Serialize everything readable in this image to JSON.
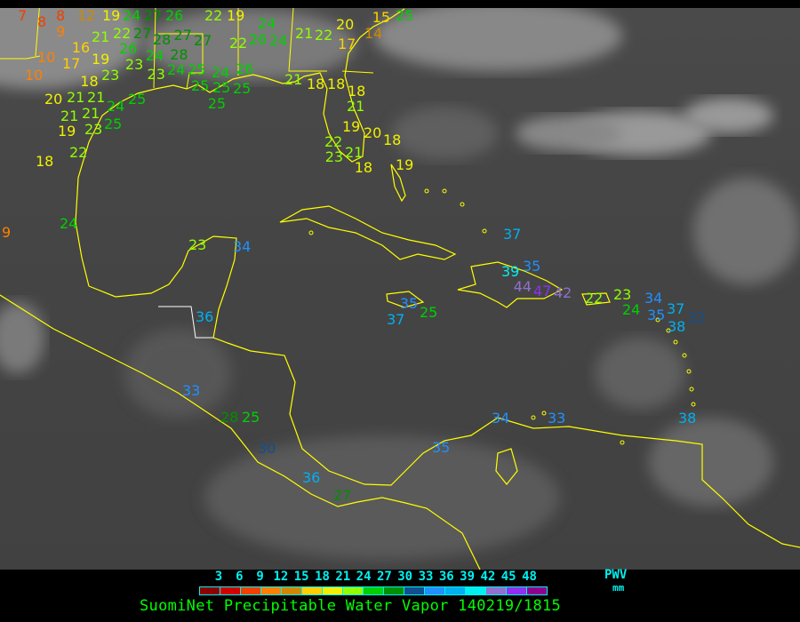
{
  "title": "SuomiNet Precipitable Water Vapor 140219/1815",
  "legend": {
    "unit_label": "PWV",
    "unit": "mm",
    "ticks": [
      "3",
      "6",
      "9",
      "12",
      "15",
      "18",
      "21",
      "24",
      "27",
      "30",
      "33",
      "36",
      "39",
      "42",
      "45",
      "48"
    ],
    "colors": [
      "#8b0000",
      "#d00000",
      "#f04000",
      "#ff8000",
      "#d08800",
      "#ffd000",
      "#f0f000",
      "#90ff00",
      "#00d000",
      "#009000",
      "#105090",
      "#2090ff",
      "#00b0f0",
      "#00f0f0",
      "#9070d0",
      "#9030f0",
      "#900090"
    ]
  },
  "map": {
    "coastline_color": "#ffff00",
    "border_color": "#ffffff"
  },
  "stations": [
    7,
    8,
    8,
    9,
    12,
    19,
    24,
    27,
    26,
    21,
    22,
    26,
    27,
    28,
    27,
    23,
    24,
    28,
    27,
    16,
    10,
    17,
    19,
    23,
    23,
    24,
    25,
    10,
    18,
    21,
    20,
    21,
    21,
    24,
    25,
    21,
    19,
    23,
    25,
    18,
    22,
    22,
    19,
    24,
    26,
    22,
    24,
    21,
    22,
    20,
    17,
    14,
    15,
    25,
    21,
    18,
    18,
    18,
    21,
    19,
    20,
    22,
    23,
    21,
    18,
    18,
    19,
    25,
    24,
    25,
    26,
    25,
    25,
    24,
    9,
    23,
    34,
    37,
    39,
    35,
    44,
    47,
    42,
    22,
    23,
    24,
    34,
    35,
    37,
    38,
    32,
    37,
    25,
    35,
    36,
    33,
    28,
    25,
    30,
    36,
    27,
    35,
    34,
    33,
    38
  ]
}
